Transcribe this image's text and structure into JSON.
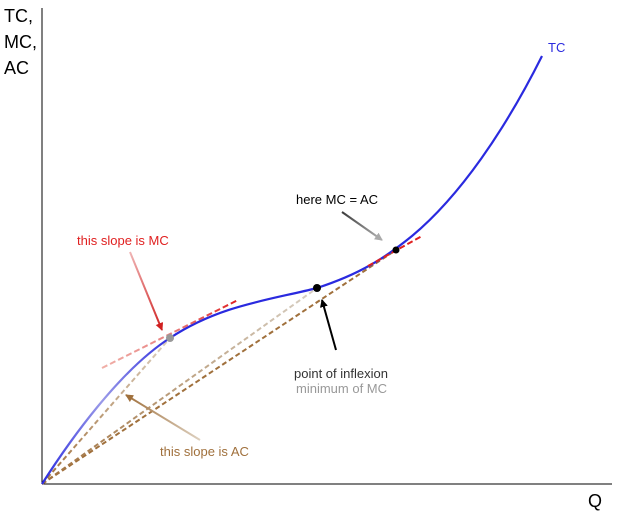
{
  "diagram": {
    "y_axis_label_lines": [
      "TC,",
      "MC,",
      "AC"
    ],
    "x_axis_label": "Q",
    "curve_label": "TC",
    "annotations": {
      "mc_slope": "this slope is MC",
      "ac_slope": "this slope is AC",
      "mc_equals_ac": "here MC = AC",
      "inflexion_line1": "point of inflexion",
      "inflexion_line2": "minimum of MC"
    },
    "colors": {
      "curve": "#2a2adf",
      "mc_red": "#e02020",
      "ac_brown": "#a0703c",
      "grey": "#999999",
      "axis": "#000000"
    }
  }
}
